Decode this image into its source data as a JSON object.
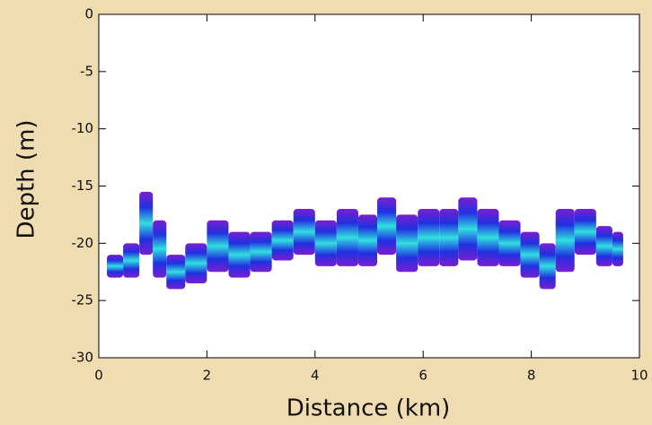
{
  "chart_data": {
    "type": "band",
    "xlabel": "Distance (km)",
    "ylabel": "Depth (m)",
    "xlim": [
      0,
      10
    ],
    "xticks": [
      0,
      2,
      4,
      6,
      8,
      10
    ],
    "ylim": [
      -30,
      0
    ],
    "yticks": [
      0,
      -5,
      -10,
      -15,
      -20,
      -25,
      -30
    ],
    "x": [
      0.3,
      0.6,
      0.9,
      1.1,
      1.4,
      1.8,
      2.2,
      2.6,
      3.0,
      3.4,
      3.8,
      4.2,
      4.6,
      5.0,
      5.3,
      5.7,
      6.1,
      6.5,
      6.8,
      7.2,
      7.6,
      8.0,
      8.3,
      8.6,
      9.0,
      9.4,
      9.6
    ],
    "upper": [
      -21,
      -20,
      -15.5,
      -18,
      -21,
      -20,
      -18,
      -19,
      -19,
      -18,
      -17,
      -18,
      -17,
      -17.5,
      -16,
      -17.5,
      -17,
      -17,
      -16,
      -17,
      -18,
      -19,
      -20,
      -17,
      -17,
      -18.5,
      -19
    ],
    "lower": [
      -23,
      -23,
      -21,
      -23,
      -24,
      -23.5,
      -22.5,
      -23,
      -22.5,
      -21.5,
      -21,
      -22,
      -22,
      -22,
      -21,
      -22.5,
      -22,
      -22,
      -21.5,
      -22,
      -22,
      -23,
      -24,
      -22.5,
      -21,
      -22,
      -22
    ],
    "color": "#2a3cd8"
  }
}
